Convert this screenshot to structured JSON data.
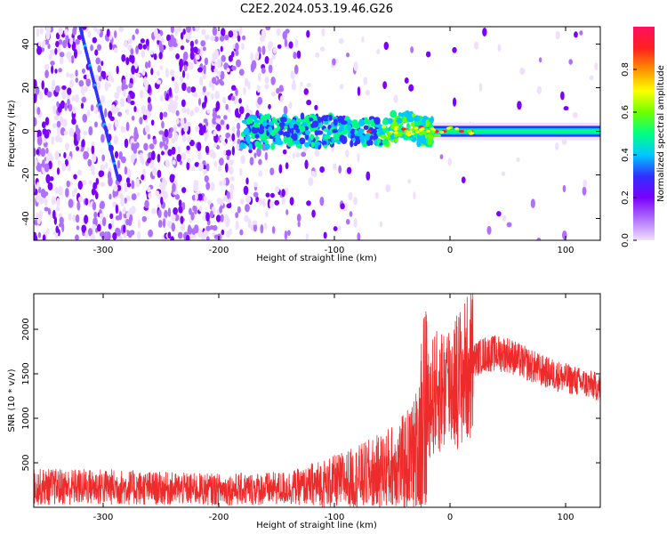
{
  "title": "C2E2.2024.053.19.46.G26",
  "colors": {
    "noise": "#8a2be2",
    "snr_line": "#ee2b2b",
    "colorbar": [
      "#f0e0ff",
      "#b070ff",
      "#7a00ff",
      "#3030ff",
      "#00c8ff",
      "#00ff80",
      "#70ff00",
      "#ffff00",
      "#ff9000",
      "#ff2020",
      "#ff1060"
    ]
  },
  "chart_data": [
    {
      "type": "heatmap",
      "xlabel": "Height of straight line (km)",
      "ylabel": "Frequency (Hz)",
      "xlim": [
        -360,
        130
      ],
      "ylim": [
        -50,
        48
      ],
      "xticks": [
        -300,
        -200,
        -100,
        0,
        100
      ],
      "yticks": [
        -40,
        -20,
        0,
        20,
        40
      ],
      "colorbar": {
        "label": "Normalized spectral amplitude",
        "range": [
          0,
          1
        ],
        "ticks": [
          0.0,
          0.2,
          0.4,
          0.6,
          0.8
        ]
      },
      "features": {
        "diagonal_trace": {
          "x": [
            -320,
            -287
          ],
          "y": [
            48,
            -22
          ]
        },
        "carrier_line_freq": 0,
        "carrier_starts_at": -180
      }
    },
    {
      "type": "line",
      "xlabel": "Height of straight line (km)",
      "ylabel": "SNR (10 * v/v)",
      "xlim": [
        -360,
        130
      ],
      "ylim": [
        0,
        2400
      ],
      "xticks": [
        -300,
        -200,
        -100,
        0,
        100
      ],
      "yticks": [
        500,
        1000,
        1500,
        2000
      ],
      "series": [
        {
          "x": [
            -360,
            -300,
            -250,
            -200,
            -150,
            -120,
            -100,
            -80,
            -60,
            -40,
            -30,
            -25,
            -20,
            -15,
            -10,
            0,
            10,
            15,
            20,
            30,
            40,
            50,
            60,
            80,
            100,
            120,
            130
          ],
          "values": [
            230,
            230,
            210,
            200,
            210,
            240,
            280,
            330,
            400,
            500,
            600,
            900,
            1150,
            1250,
            1300,
            1400,
            1480,
            1550,
            1650,
            1720,
            1730,
            1720,
            1650,
            1530,
            1450,
            1380,
            1350
          ]
        }
      ]
    }
  ]
}
